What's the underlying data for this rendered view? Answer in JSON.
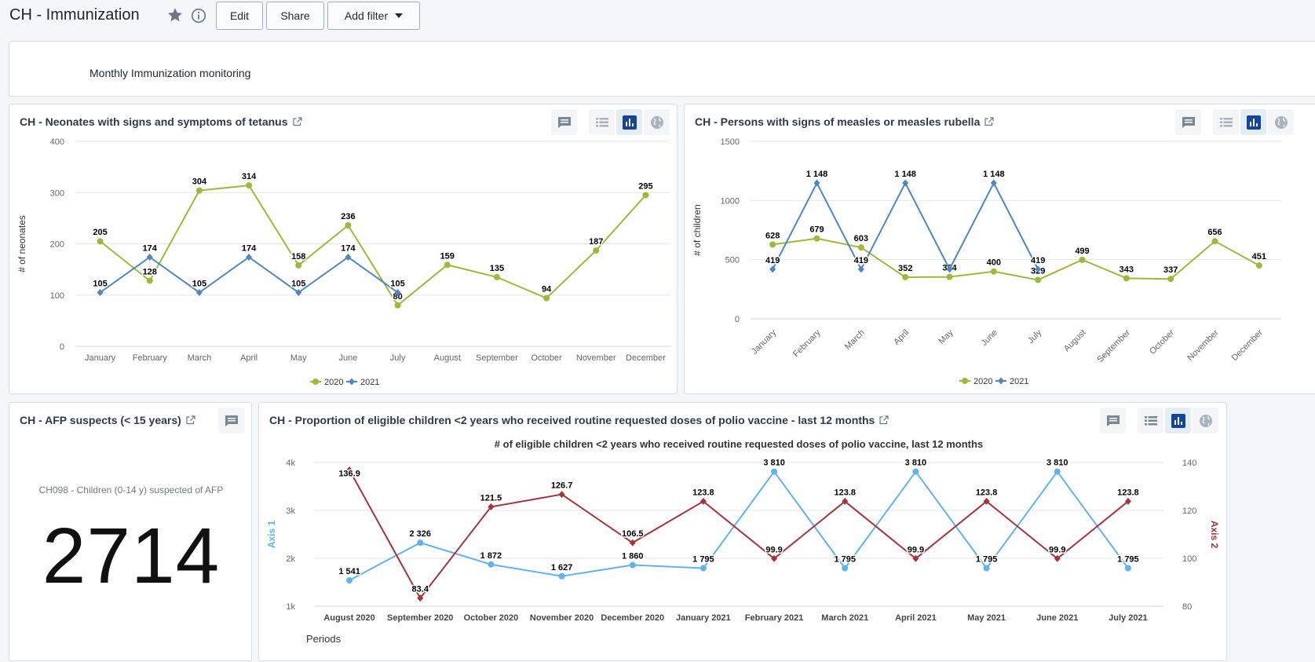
{
  "dashboard": {
    "title": "CH - Immunization",
    "edit_label": "Edit",
    "share_label": "Share",
    "add_filter_label": "Add filter"
  },
  "text_item": {
    "text": "Monthly Immunization monitoring"
  },
  "colors": {
    "series_2020": "#9cb93a",
    "series_2021": "#4f87c1",
    "axis1": "#62b2ec",
    "axis2": "#a3353f",
    "selected_icon": "#14459a"
  },
  "cards": {
    "tetanus": {
      "title": "CH - Neonates with signs and symptoms of tetanus"
    },
    "measles": {
      "title": "CH - Persons with signs of measles or measles rubella"
    },
    "afp": {
      "title": "CH - AFP suspects (< 15 years)",
      "label": "CH098 - Children (0-14 y) suspected of AFP",
      "value": "2714"
    },
    "polio": {
      "title": "CH - Proportion of eligible children <2 years who received routine requested doses of polio vaccine - last 12 months"
    }
  },
  "chart_data": [
    {
      "type": "line",
      "categories": [
        "January",
        "February",
        "March",
        "April",
        "May",
        "June",
        "July",
        "August",
        "September",
        "October",
        "November",
        "December"
      ],
      "series": [
        {
          "name": "2020",
          "values": [
            205,
            128,
            304,
            314,
            158,
            236,
            80,
            159,
            135,
            94,
            187,
            295
          ]
        },
        {
          "name": "2021",
          "values": [
            105,
            174,
            105,
            174,
            105,
            174,
            105,
            null,
            null,
            null,
            null,
            null
          ]
        }
      ],
      "title": "",
      "ylabel": "# of neonates",
      "ylim": [
        0,
        400
      ],
      "yticks": [
        "0",
        "100",
        "200",
        "300",
        "400"
      ],
      "legend": "bottom-center",
      "grid": true
    },
    {
      "type": "line",
      "categories": [
        "January",
        "February",
        "March",
        "April",
        "May",
        "June",
        "July",
        "August",
        "September",
        "October",
        "November",
        "December"
      ],
      "series": [
        {
          "name": "2020",
          "values": [
            628,
            679,
            603,
            352,
            354,
            400,
            329,
            499,
            343,
            337,
            656,
            451
          ]
        },
        {
          "name": "2021",
          "values": [
            419,
            1148,
            419,
            1148,
            419,
            1148,
            419,
            null,
            null,
            null,
            null,
            null
          ]
        }
      ],
      "value_labels": {
        "2020": [
          "628",
          "679",
          "603",
          "352",
          "354",
          "400",
          "329",
          "499",
          "343",
          "337",
          "656",
          "451"
        ],
        "2021": [
          "419",
          "1 148",
          "419",
          "1 148",
          "",
          "1 148",
          "419",
          "",
          "",
          "",
          "",
          ""
        ]
      },
      "title": "",
      "ylabel": "# of children",
      "ylim": [
        0,
        1500
      ],
      "yticks": [
        "0",
        "500",
        "1000",
        "1500"
      ],
      "legend": "bottom-center",
      "grid": true
    },
    {
      "type": "line",
      "title": "# of eligible children <2 years who received routine requested doses of polio vaccine, last 12 months",
      "categories": [
        "August 2020",
        "September 2020",
        "October 2020",
        "November 2020",
        "December 2020",
        "January 2021",
        "February 2021",
        "March 2021",
        "April 2021",
        "May 2021",
        "June 2021",
        "July 2021"
      ],
      "xlabel": "Periods",
      "series": [
        {
          "name": "Axis 1",
          "axis": "left",
          "values": [
            1541,
            2326,
            1872,
            1627,
            1860,
            1795,
            3810,
            1795,
            3810,
            1795,
            3810,
            1795
          ],
          "labels": [
            "1 541",
            "2 326",
            "1 872",
            "1 627",
            "1 860",
            "1 795",
            "3 810",
            "1 795",
            "3 810",
            "1 795",
            "3 810",
            "1 795"
          ]
        },
        {
          "name": "Axis 2",
          "axis": "right",
          "values": [
            136.9,
            83.4,
            121.5,
            126.7,
            106.5,
            123.8,
            99.9,
            123.8,
            99.9,
            123.8,
            99.9,
            123.8
          ],
          "labels": [
            "136.9",
            "83.4",
            "121.5",
            "126.7",
            "106.5",
            "123.8",
            "99.9",
            "123.8",
            "99.9",
            "123.8",
            "99.9",
            "123.8"
          ]
        }
      ],
      "y1label": "Axis 1",
      "y1lim": [
        1000,
        4000
      ],
      "y1ticks": [
        "1k",
        "2k",
        "3k",
        "4k"
      ],
      "y2label": "Axis 2",
      "y2lim": [
        80,
        140
      ],
      "y2ticks": [
        "80",
        "100",
        "120",
        "140"
      ],
      "grid": true
    }
  ]
}
